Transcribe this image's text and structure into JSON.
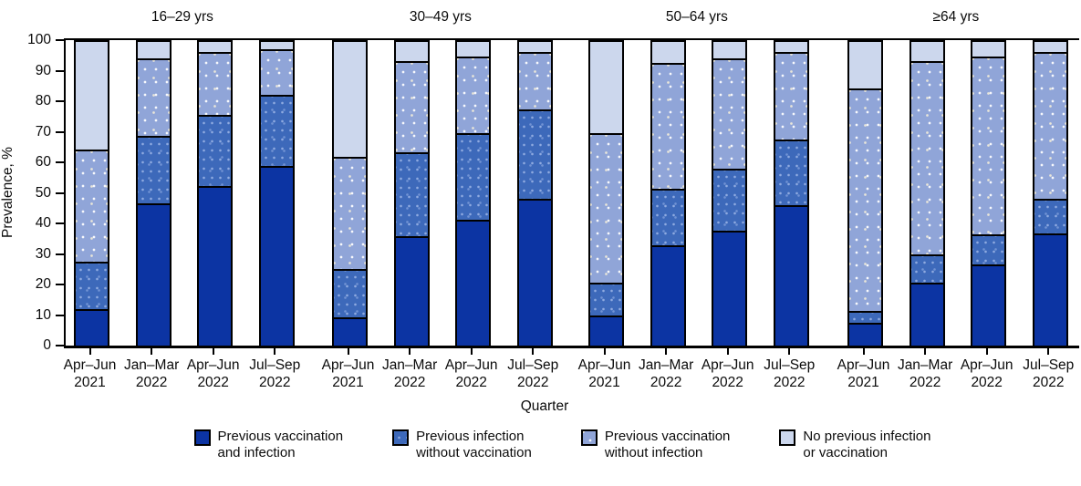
{
  "figure": {
    "y_axis": {
      "label": "Prevalence, %",
      "ticks": [
        0,
        10,
        20,
        30,
        40,
        50,
        60,
        70,
        80,
        90,
        100
      ]
    },
    "x_axis": {
      "label": "Quarter"
    },
    "panel_titles": [
      "16–29 yrs",
      "30–49 yrs",
      "50–64 yrs",
      "≥64 yrs"
    ],
    "legend": [
      {
        "line1": "Previous vaccination",
        "line2": "and infection"
      },
      {
        "line1": "Previous infection",
        "line2": "without vaccination"
      },
      {
        "line1": "Previous vaccination",
        "line2": "without infection"
      },
      {
        "line1": "No previous infection",
        "line2": "or vaccination"
      }
    ],
    "colors": {
      "previous_vaccination_and_infection": "#0c34a3",
      "previous_infection_without_vaccination": "#3d69ba",
      "previous_vaccination_without_infection": "#90a5d8",
      "no_previous_infection_or_vaccination": "#ccd7ed",
      "axis": "#000000"
    }
  },
  "chart_data": {
    "type": "bar",
    "stacked": true,
    "orientation": "vertical",
    "title": "",
    "ylabel": "Prevalence, %",
    "xlabel": "Quarter",
    "ylim": [
      0,
      100
    ],
    "y_ticks": [
      0,
      10,
      20,
      30,
      40,
      50,
      60,
      70,
      80,
      90,
      100
    ],
    "grid": false,
    "legend_position": "bottom",
    "groups": [
      "16–29 yrs",
      "30–49 yrs",
      "50–64 yrs",
      "≥64 yrs"
    ],
    "categories": [
      "Apr–Jun 2021",
      "Jan–Mar 2022",
      "Apr–Jun 2022",
      "Jul–Sep 2022"
    ],
    "category_labels": [
      [
        "Apr–Jun",
        "2021"
      ],
      [
        "Jan–Mar",
        "2022"
      ],
      [
        "Apr–Jun",
        "2022"
      ],
      [
        "Jul–Sep",
        "2022"
      ]
    ],
    "series": [
      {
        "name": "Previous vaccination and infection",
        "color": "#0c34a3",
        "texture": "none",
        "values": [
          [
            11.5,
            47,
            53,
            59.5
          ],
          [
            9,
            36,
            41.5,
            48.5
          ],
          [
            9.5,
            33,
            38,
            46.5
          ],
          [
            7,
            20.5,
            26.5,
            37
          ]
        ]
      },
      {
        "name": "Previous infection without vaccination",
        "color": "#3d69ba",
        "texture": "dots-faint",
        "values": [
          [
            15.5,
            22,
            23,
            23.5
          ],
          [
            15.5,
            27.5,
            28.5,
            29.5
          ],
          [
            10.5,
            18.5,
            20,
            21.5
          ],
          [
            3.5,
            9,
            9.5,
            11
          ]
        ]
      },
      {
        "name": "Previous vaccination without infection",
        "color": "#90a5d8",
        "texture": "dots",
        "values": [
          [
            37,
            25.5,
            20.5,
            14.5
          ],
          [
            37,
            30,
            25,
            18.5
          ],
          [
            49.5,
            41.5,
            36.5,
            28.5
          ],
          [
            74,
            64,
            59,
            48.5
          ]
        ]
      },
      {
        "name": "No previous infection or vaccination",
        "color": "#ccd7ed",
        "texture": "none",
        "values": [
          [
            36,
            5.5,
            3.5,
            2.5
          ],
          [
            38.5,
            6.5,
            5,
            3.5
          ],
          [
            30.5,
            7,
            5.5,
            3.5
          ],
          [
            15.5,
            6.5,
            5,
            3.5
          ]
        ]
      }
    ]
  }
}
